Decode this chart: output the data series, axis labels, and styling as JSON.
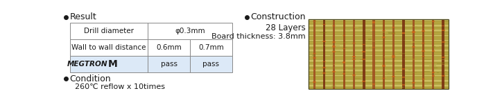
{
  "title_result": "Result",
  "title_construction": "Construction",
  "construction_line1": "28 Layers",
  "construction_line2": "Board thickness: 3.8mm",
  "condition_title": "Condition",
  "condition_text": "260℃ reflow x 10times",
  "table": {
    "row1_col1": "Drill diameter",
    "row1_col2": "φ0.3mm",
    "row2_col1": "Wall to wall distance",
    "row2_col2": "0.6mm",
    "row2_col3": "0.7mm",
    "row3_col2": "pass",
    "row3_col3": "pass"
  },
  "table_row3_bg": "#dce9f7",
  "border_color": "#888888",
  "text_color": "#1a1a1a",
  "bg_color": "#ffffff",
  "fig_width": 7.24,
  "fig_height": 1.61
}
